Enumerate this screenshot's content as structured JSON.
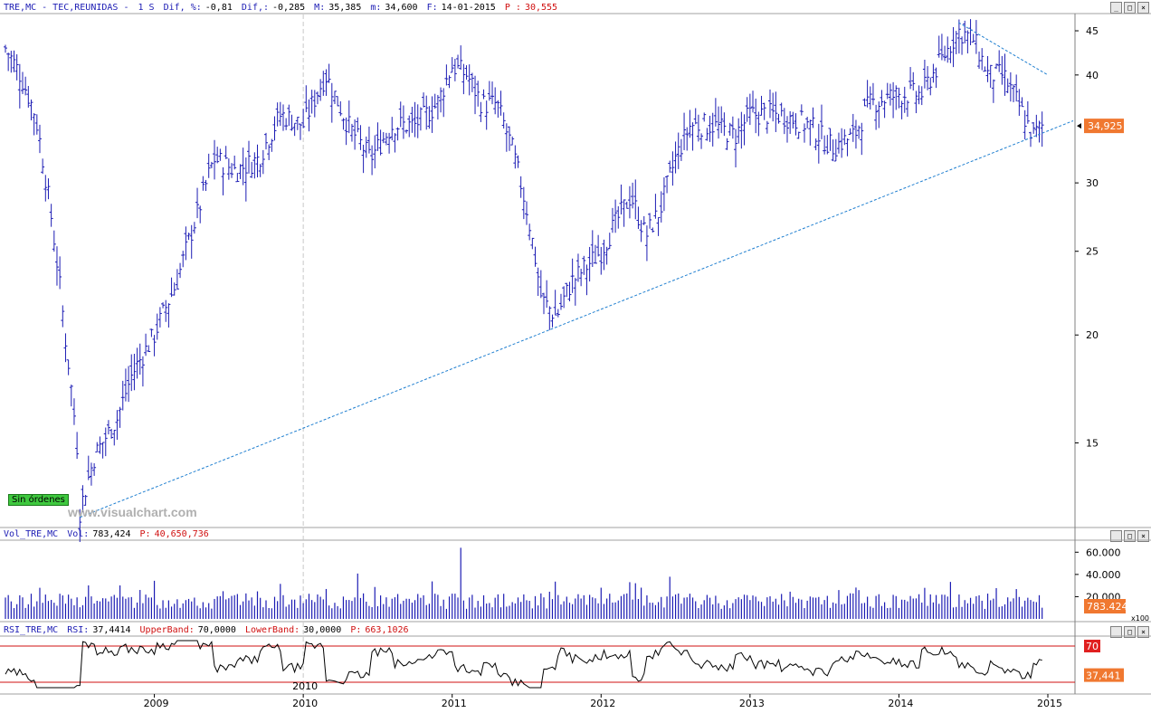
{
  "main_header": {
    "symbol": "TRE,MC - TEC,REUNIDAS -",
    "period": "1 S",
    "dif_pct_label": "Dif, %:",
    "dif_pct": "-0,81",
    "dif_label": "Dif,:",
    "dif": "-0,285",
    "max_label": "M:",
    "max": "35,385",
    "min_label": "m:",
    "min": "34,600",
    "date_label": "F:",
    "date": "14-01-2015",
    "p_label": "P :",
    "p": "30,555"
  },
  "vol_header": {
    "name": "Vol_TRE,MC",
    "vol_label": "Vol:",
    "vol": "783,424",
    "p_label": "P:",
    "p": "40,650,736"
  },
  "rsi_header": {
    "name": "RSI_TRE,MC",
    "rsi_label": "RSI:",
    "rsi": "37,4414",
    "upper_label": "UpperBand:",
    "upper": "70,0000",
    "lower_label": "LowerBand:",
    "lower": "30,0000",
    "p_label": "P:",
    "p": "663,1026"
  },
  "watermark": "www.visualchart.com",
  "status_label": "Sin órdenes",
  "window_buttons": [
    "_",
    "□",
    "×"
  ],
  "colors": {
    "bars": "#1c1cb4",
    "trend": "#1f7fd0",
    "rsi_band": "#d01010",
    "tag": "#f07830",
    "tag_red": "#e02020"
  },
  "chart_data": [
    {
      "type": "ohlc",
      "scale": "log",
      "x": [
        "2009",
        "2010",
        "2011",
        "2012",
        "2013",
        "2014",
        "2015"
      ],
      "yticks": [
        15,
        20,
        25,
        30,
        40,
        45
      ],
      "ylim": [
        12,
        47
      ],
      "last_tag": "34,925",
      "highlight_year_x": "2010",
      "close_path": [
        {
          "t": 2008.0,
          "v": 43
        },
        {
          "t": 2008.1,
          "v": 40
        },
        {
          "t": 2008.2,
          "v": 36
        },
        {
          "t": 2008.3,
          "v": 28
        },
        {
          "t": 2008.4,
          "v": 20
        },
        {
          "t": 2008.48,
          "v": 15
        },
        {
          "t": 2008.5,
          "v": 12.5
        },
        {
          "t": 2008.6,
          "v": 14.5
        },
        {
          "t": 2008.75,
          "v": 16
        },
        {
          "t": 2008.85,
          "v": 18
        },
        {
          "t": 2009.0,
          "v": 20
        },
        {
          "t": 2009.15,
          "v": 23
        },
        {
          "t": 2009.3,
          "v": 28
        },
        {
          "t": 2009.4,
          "v": 32
        },
        {
          "t": 2009.55,
          "v": 31
        },
        {
          "t": 2009.7,
          "v": 32
        },
        {
          "t": 2009.85,
          "v": 36
        },
        {
          "t": 2010.0,
          "v": 35
        },
        {
          "t": 2010.15,
          "v": 40
        },
        {
          "t": 2010.3,
          "v": 35
        },
        {
          "t": 2010.45,
          "v": 32
        },
        {
          "t": 2010.6,
          "v": 35
        },
        {
          "t": 2010.75,
          "v": 35
        },
        {
          "t": 2010.9,
          "v": 37
        },
        {
          "t": 2011.0,
          "v": 41
        },
        {
          "t": 2011.1,
          "v": 40
        },
        {
          "t": 2011.2,
          "v": 37
        },
        {
          "t": 2011.3,
          "v": 37
        },
        {
          "t": 2011.4,
          "v": 33
        },
        {
          "t": 2011.5,
          "v": 28
        },
        {
          "t": 2011.6,
          "v": 22
        },
        {
          "t": 2011.7,
          "v": 21
        },
        {
          "t": 2011.8,
          "v": 23
        },
        {
          "t": 2011.9,
          "v": 24
        },
        {
          "t": 2012.0,
          "v": 25
        },
        {
          "t": 2012.1,
          "v": 27
        },
        {
          "t": 2012.2,
          "v": 29
        },
        {
          "t": 2012.3,
          "v": 26
        },
        {
          "t": 2012.4,
          "v": 28
        },
        {
          "t": 2012.5,
          "v": 32
        },
        {
          "t": 2012.6,
          "v": 35
        },
        {
          "t": 2012.75,
          "v": 35
        },
        {
          "t": 2012.9,
          "v": 34
        },
        {
          "t": 2013.0,
          "v": 36
        },
        {
          "t": 2013.2,
          "v": 36
        },
        {
          "t": 2013.4,
          "v": 35
        },
        {
          "t": 2013.55,
          "v": 33
        },
        {
          "t": 2013.7,
          "v": 34
        },
        {
          "t": 2013.8,
          "v": 37
        },
        {
          "t": 2014.0,
          "v": 38
        },
        {
          "t": 2014.15,
          "v": 38
        },
        {
          "t": 2014.3,
          "v": 42
        },
        {
          "t": 2014.4,
          "v": 45
        },
        {
          "t": 2014.5,
          "v": 44
        },
        {
          "t": 2014.6,
          "v": 40
        },
        {
          "t": 2014.7,
          "v": 40
        },
        {
          "t": 2014.8,
          "v": 37
        },
        {
          "t": 2014.9,
          "v": 34
        },
        {
          "t": 2014.97,
          "v": 35
        }
      ]
    },
    {
      "type": "bar",
      "yticks": [
        20000,
        40000,
        60000
      ],
      "ytick_labels": [
        "20.000",
        "40.000",
        "60.000"
      ],
      "last_tag": "783.424",
      "scale_label": "x100"
    },
    {
      "type": "line",
      "bands": [
        70,
        30
      ],
      "ylim": [
        20,
        80
      ],
      "last_tags": [
        "70",
        "37,441"
      ]
    }
  ]
}
